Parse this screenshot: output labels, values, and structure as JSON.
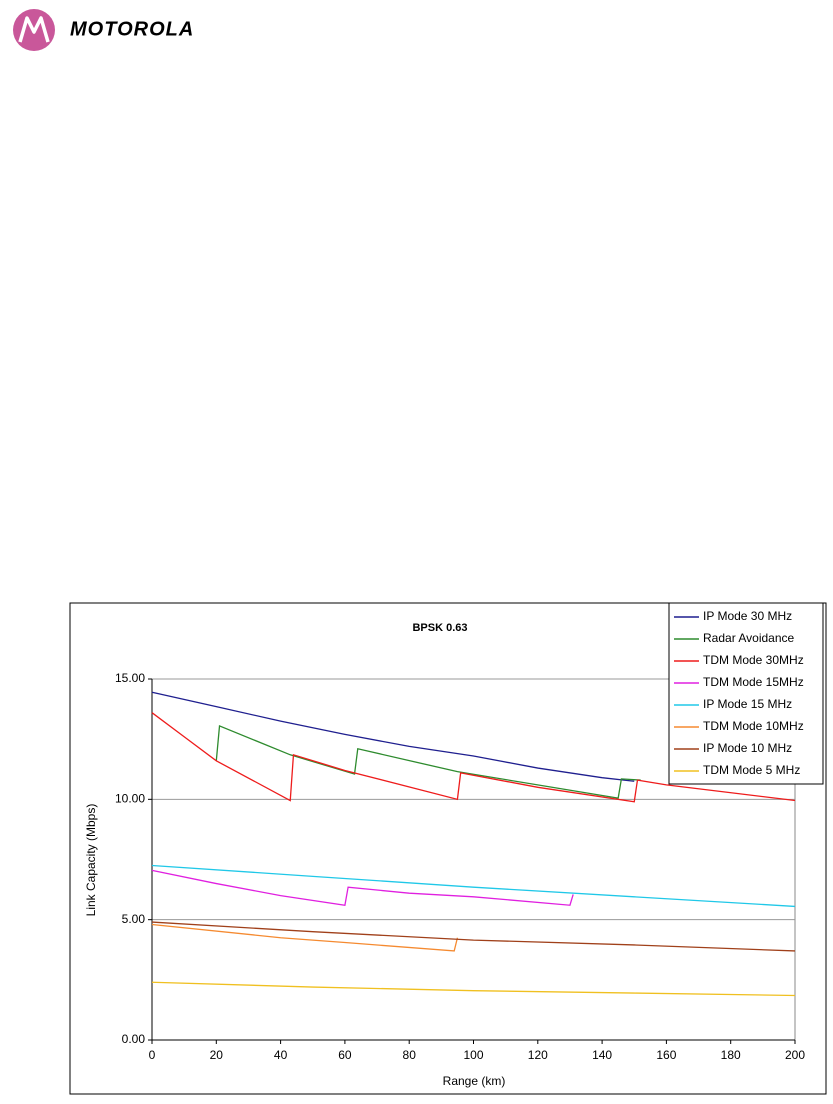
{
  "header": {
    "logo_text": "MOTOROLA"
  },
  "chart_data": {
    "type": "line",
    "title": "BPSK 0.63",
    "x_label": "Range (km)",
    "y_label": "Link Capacity (Mbps)",
    "xlim": [
      0,
      200
    ],
    "xticks": [
      0,
      20,
      40,
      60,
      80,
      100,
      120,
      140,
      160,
      180,
      200
    ],
    "ylim": [
      0,
      15
    ],
    "yticks": [
      {
        "value": 0,
        "label": "0.00"
      },
      {
        "value": 5,
        "label": "5.00"
      },
      {
        "value": 10,
        "label": "10.00"
      },
      {
        "value": 15,
        "label": "15.00"
      }
    ],
    "grid": true,
    "legend": "upper right",
    "series": [
      {
        "name": "IP Mode 30 MHz",
        "color": "#1f1f8f",
        "x": [
          0,
          20,
          40,
          60,
          80,
          100,
          120,
          140,
          150
        ],
        "values": [
          14.45,
          13.85,
          13.25,
          12.7,
          12.2,
          11.8,
          11.3,
          10.9,
          10.75
        ]
      },
      {
        "name": "Radar Avoidance",
        "color": "#2e8b2e",
        "x": [
          20,
          21,
          43,
          63,
          64,
          95,
          145,
          146,
          152
        ],
        "values": [
          11.6,
          13.05,
          11.85,
          11.05,
          12.1,
          11.15,
          10.05,
          10.85,
          10.8
        ]
      },
      {
        "name": "TDM Mode 30MHz",
        "color": "#ee1c1c",
        "x": [
          0,
          10,
          20,
          43,
          44,
          60,
          95,
          96,
          120,
          150,
          151,
          160,
          200
        ],
        "values": [
          13.6,
          12.6,
          11.6,
          9.95,
          11.85,
          11.2,
          10.0,
          11.1,
          10.5,
          9.9,
          10.8,
          10.6,
          9.95
        ]
      },
      {
        "name": "TDM Mode 15MHz",
        "color": "#e020e0",
        "x": [
          0,
          20,
          40,
          60,
          61,
          80,
          100,
          130,
          131
        ],
        "values": [
          7.05,
          6.5,
          6.0,
          5.6,
          6.35,
          6.1,
          5.95,
          5.6,
          6.05
        ]
      },
      {
        "name": "IP Mode 15 MHz",
        "color": "#20c8e8",
        "x": [
          0,
          50,
          100,
          150,
          200
        ],
        "values": [
          7.25,
          6.8,
          6.35,
          5.95,
          5.55
        ]
      },
      {
        "name": "TDM Mode 10MHz",
        "color": "#f58a30",
        "x": [
          0,
          40,
          60,
          94,
          95
        ],
        "values": [
          4.8,
          4.25,
          4.05,
          3.7,
          4.25
        ]
      },
      {
        "name": "IP Mode 10 MHz",
        "color": "#a0401a",
        "x": [
          0,
          50,
          100,
          150,
          200
        ],
        "values": [
          4.9,
          4.5,
          4.15,
          3.95,
          3.7
        ]
      },
      {
        "name": "TDM Mode 5 MHz",
        "color": "#f0c020",
        "x": [
          0,
          50,
          100,
          150,
          200
        ],
        "values": [
          2.4,
          2.2,
          2.05,
          1.95,
          1.85
        ]
      }
    ]
  }
}
